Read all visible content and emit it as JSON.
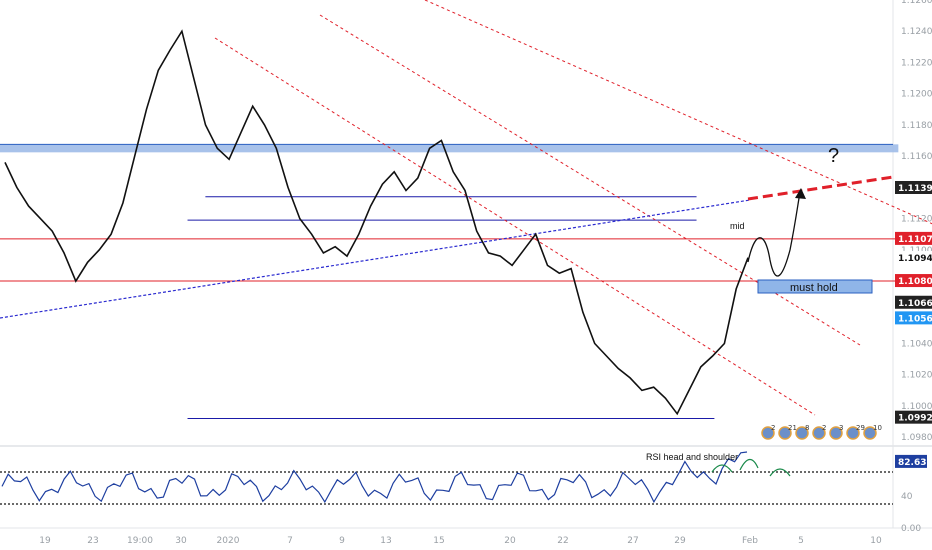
{
  "chart_data": {
    "type": "line",
    "title": "",
    "ylabel": "",
    "xlabel": "",
    "ylim": [
      1.0975,
      1.126
    ],
    "price_ticks": [
      "1.12600",
      "1.12400",
      "1.12200",
      "1.12000",
      "1.11800",
      "1.11600",
      "1.11200",
      "1.11000",
      "1.10400",
      "1.10200",
      "1.10000",
      "1.09800"
    ],
    "x_ticks": [
      "19",
      "23",
      "19:00",
      "30",
      "2020",
      "7",
      "9",
      "13",
      "15",
      "20",
      "22",
      "27",
      "29",
      "Feb",
      "5",
      "10"
    ],
    "price_tags": [
      {
        "label": "1.11396",
        "value": 1.11396,
        "color": "#222222"
      },
      {
        "label": "1.11070",
        "value": 1.1107,
        "color": "#e0202a"
      },
      {
        "label": "1.10948",
        "value": 1.10948,
        "color": "#ffffff"
      },
      {
        "label": "1.10800",
        "value": 1.108,
        "color": "#e0202a"
      },
      {
        "label": "1.10661",
        "value": 1.10661,
        "color": "#222222"
      },
      {
        "label": "1.10561",
        "value": 1.10561,
        "color": "#2196f3"
      },
      {
        "label": "1.09925",
        "value": 1.09925,
        "color": "#222222"
      }
    ],
    "horizontal_levels": [
      {
        "value": 1.1134,
        "color": "#1a1aa8",
        "from": 0.23,
        "to": 0.78
      },
      {
        "value": 1.1165,
        "color": "#4a7fd4",
        "from": 0,
        "to": 0.95,
        "band": true
      },
      {
        "value": 1.1107,
        "color": "#e0202a",
        "from": 0,
        "to": 0.95
      },
      {
        "value": 1.108,
        "color": "#e0202a",
        "from": 0,
        "to": 0.95
      },
      {
        "value": 1.1119,
        "color": "#1a1aa8",
        "from": 0.21,
        "to": 0.78
      },
      {
        "value": 1.0992,
        "color": "#1a1aa8",
        "from": 0.21,
        "to": 0.8
      }
    ],
    "series": [
      {
        "name": "EURUSD",
        "values": [
          1.1156,
          1.114,
          1.1128,
          1.112,
          1.1112,
          1.1098,
          1.108,
          1.1092,
          1.11,
          1.111,
          1.113,
          1.116,
          1.119,
          1.1215,
          1.1228,
          1.124,
          1.121,
          1.118,
          1.1165,
          1.1158,
          1.1175,
          1.1192,
          1.118,
          1.1165,
          1.114,
          1.112,
          1.111,
          1.1098,
          1.1102,
          1.1096,
          1.111,
          1.1128,
          1.1142,
          1.115,
          1.1138,
          1.1146,
          1.1165,
          1.117,
          1.115,
          1.1138,
          1.1112,
          1.1098,
          1.1096,
          1.109,
          1.11,
          1.111,
          1.109,
          1.1085,
          1.1088,
          1.106,
          1.104,
          1.1032,
          1.1024,
          1.1018,
          1.101,
          1.1012,
          1.1005,
          1.0995,
          1.101,
          1.1025,
          1.1032,
          1.104,
          1.1075,
          1.1095
        ]
      }
    ],
    "annotations": [
      "must hold",
      "mid",
      "?",
      "RSI head and shoulder"
    ],
    "rsi": {
      "current": "82.63",
      "levels": [
        "70",
        "40",
        "0.00"
      ]
    },
    "events": [
      "2",
      "21",
      "8",
      "2",
      "3",
      "29",
      "10"
    ]
  }
}
